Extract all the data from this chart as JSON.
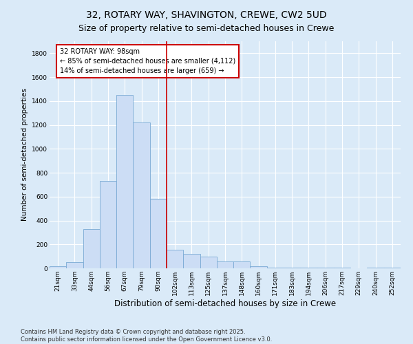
{
  "title": "32, ROTARY WAY, SHAVINGTON, CREWE, CW2 5UD",
  "subtitle": "Size of property relative to semi-detached houses in Crewe",
  "xlabel": "Distribution of semi-detached houses by size in Crewe",
  "ylabel": "Number of semi-detached properties",
  "categories": [
    "21sqm",
    "33sqm",
    "44sqm",
    "56sqm",
    "67sqm",
    "79sqm",
    "90sqm",
    "102sqm",
    "113sqm",
    "125sqm",
    "137sqm",
    "148sqm",
    "160sqm",
    "171sqm",
    "183sqm",
    "194sqm",
    "206sqm",
    "217sqm",
    "229sqm",
    "240sqm",
    "252sqm"
  ],
  "values": [
    20,
    50,
    330,
    730,
    1450,
    1220,
    580,
    155,
    120,
    100,
    60,
    60,
    20,
    5,
    3,
    3,
    3,
    3,
    1,
    3,
    3
  ],
  "bar_color": "#ccddf5",
  "bar_edge_color": "#7aaad4",
  "highlight_line_color": "#cc0000",
  "highlight_line_index": 6.5,
  "annotation_text": "32 ROTARY WAY: 98sqm\n← 85% of semi-detached houses are smaller (4,112)\n14% of semi-detached houses are larger (659) →",
  "annotation_box_facecolor": "#ffffff",
  "annotation_box_edgecolor": "#cc0000",
  "ylim": [
    0,
    1900
  ],
  "yticks": [
    0,
    200,
    400,
    600,
    800,
    1000,
    1200,
    1400,
    1600,
    1800
  ],
  "background_color": "#daeaf8",
  "grid_color": "#ffffff",
  "footer_text": "Contains HM Land Registry data © Crown copyright and database right 2025.\nContains public sector information licensed under the Open Government Licence v3.0.",
  "title_fontsize": 10,
  "subtitle_fontsize": 9,
  "xlabel_fontsize": 8.5,
  "ylabel_fontsize": 7.5,
  "tick_fontsize": 6.5,
  "annotation_fontsize": 7,
  "footer_fontsize": 6
}
